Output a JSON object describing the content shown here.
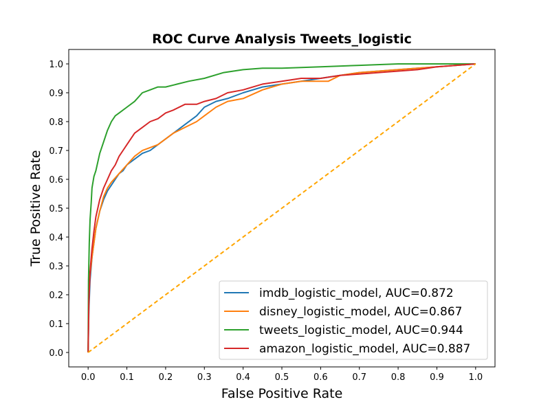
{
  "chart_data": {
    "type": "line",
    "title": "ROC Curve Analysis Tweets_logistic",
    "xlabel": "False Positive Rate",
    "ylabel": "True Positive Rate",
    "xlim": [
      -0.05,
      1.05
    ],
    "ylim": [
      -0.05,
      1.05
    ],
    "xticks": [
      "0.0",
      "0.1",
      "0.2",
      "0.3",
      "0.4",
      "0.5",
      "0.6",
      "0.7",
      "0.8",
      "0.9",
      "1.0"
    ],
    "yticks": [
      "0.0",
      "0.1",
      "0.2",
      "0.3",
      "0.4",
      "0.5",
      "0.6",
      "0.7",
      "0.8",
      "0.9",
      "1.0"
    ],
    "legend_position": "lower-right",
    "grid": false,
    "series": [
      {
        "name": "imdb_logistic_model, AUC=0.872",
        "color": "#1f77b4",
        "x": [
          0,
          0.002,
          0.005,
          0.01,
          0.015,
          0.02,
          0.03,
          0.04,
          0.05,
          0.06,
          0.07,
          0.08,
          0.09,
          0.1,
          0.12,
          0.14,
          0.16,
          0.18,
          0.2,
          0.22,
          0.25,
          0.28,
          0.3,
          0.33,
          0.36,
          0.4,
          0.45,
          0.5,
          0.55,
          0.6,
          0.65,
          0.7,
          0.75,
          0.8,
          0.85,
          0.9,
          0.95,
          1.0
        ],
        "y": [
          0,
          0.15,
          0.25,
          0.33,
          0.38,
          0.43,
          0.49,
          0.53,
          0.56,
          0.58,
          0.6,
          0.62,
          0.63,
          0.65,
          0.67,
          0.69,
          0.7,
          0.72,
          0.74,
          0.76,
          0.79,
          0.82,
          0.85,
          0.87,
          0.88,
          0.9,
          0.92,
          0.93,
          0.94,
          0.95,
          0.96,
          0.97,
          0.975,
          0.98,
          0.985,
          0.99,
          0.995,
          1.0
        ]
      },
      {
        "name": "disney_logistic_model, AUC=0.867",
        "color": "#ff7f0e",
        "x": [
          0,
          0.002,
          0.005,
          0.01,
          0.015,
          0.02,
          0.03,
          0.04,
          0.05,
          0.06,
          0.08,
          0.1,
          0.12,
          0.14,
          0.16,
          0.18,
          0.2,
          0.22,
          0.25,
          0.28,
          0.3,
          0.33,
          0.36,
          0.4,
          0.45,
          0.5,
          0.55,
          0.6,
          0.62,
          0.65,
          0.7,
          0.75,
          0.8,
          0.85,
          0.9,
          0.95,
          1.0
        ],
        "y": [
          0,
          0.2,
          0.27,
          0.33,
          0.38,
          0.43,
          0.49,
          0.54,
          0.57,
          0.59,
          0.62,
          0.65,
          0.68,
          0.7,
          0.71,
          0.72,
          0.74,
          0.76,
          0.78,
          0.8,
          0.82,
          0.85,
          0.87,
          0.88,
          0.91,
          0.93,
          0.94,
          0.94,
          0.94,
          0.96,
          0.97,
          0.975,
          0.98,
          0.985,
          0.99,
          0.995,
          1.0
        ]
      },
      {
        "name": "tweets_logistic_model, AUC=0.944",
        "color": "#2ca02c",
        "x": [
          0,
          0.001,
          0.003,
          0.005,
          0.008,
          0.01,
          0.015,
          0.02,
          0.025,
          0.03,
          0.04,
          0.05,
          0.06,
          0.07,
          0.08,
          0.1,
          0.12,
          0.14,
          0.16,
          0.18,
          0.2,
          0.23,
          0.26,
          0.3,
          0.35,
          0.4,
          0.45,
          0.5,
          0.6,
          0.7,
          0.8,
          0.9,
          1.0
        ],
        "y": [
          0,
          0.25,
          0.38,
          0.46,
          0.52,
          0.57,
          0.61,
          0.63,
          0.66,
          0.69,
          0.73,
          0.77,
          0.8,
          0.82,
          0.83,
          0.85,
          0.87,
          0.9,
          0.91,
          0.92,
          0.92,
          0.93,
          0.94,
          0.95,
          0.97,
          0.98,
          0.985,
          0.985,
          0.99,
          0.995,
          1.0,
          1.0,
          1.0
        ]
      },
      {
        "name": "amazon_logistic_model, AUC=0.887",
        "color": "#d62728",
        "x": [
          0,
          0.002,
          0.005,
          0.01,
          0.015,
          0.02,
          0.03,
          0.04,
          0.05,
          0.06,
          0.07,
          0.08,
          0.09,
          0.1,
          0.12,
          0.14,
          0.16,
          0.18,
          0.2,
          0.22,
          0.25,
          0.28,
          0.3,
          0.33,
          0.36,
          0.4,
          0.45,
          0.5,
          0.55,
          0.6,
          0.65,
          0.7,
          0.75,
          0.8,
          0.85,
          0.9,
          0.95,
          1.0
        ],
        "y": [
          0,
          0.18,
          0.28,
          0.36,
          0.42,
          0.47,
          0.53,
          0.57,
          0.6,
          0.63,
          0.65,
          0.68,
          0.7,
          0.72,
          0.76,
          0.78,
          0.8,
          0.81,
          0.83,
          0.84,
          0.86,
          0.86,
          0.87,
          0.88,
          0.9,
          0.91,
          0.93,
          0.94,
          0.95,
          0.95,
          0.96,
          0.965,
          0.97,
          0.975,
          0.98,
          0.99,
          0.995,
          1.0
        ]
      },
      {
        "color": "#ffa500",
        "style": "dashed",
        "x": [
          0,
          1
        ],
        "y": [
          0,
          1
        ]
      }
    ]
  }
}
